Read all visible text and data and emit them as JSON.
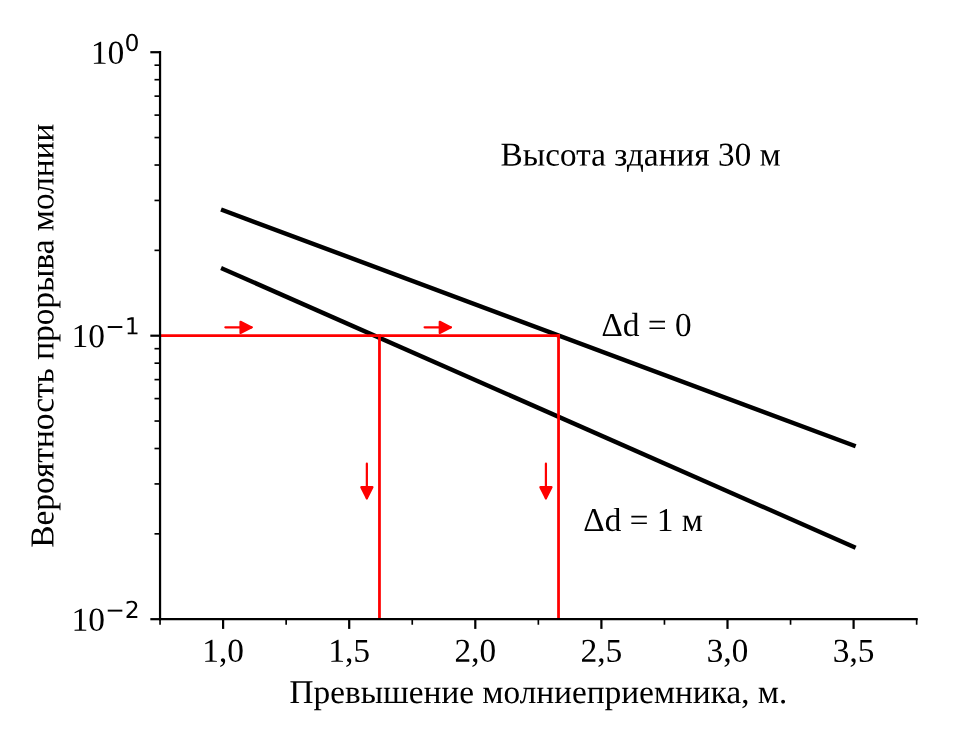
{
  "chart_data": {
    "type": "line",
    "xlabel": "Превышение молниеприемника, м.",
    "ylabel": "Вероятность прорыва молнии",
    "log": "y",
    "xlim": [
      0.75,
      3.75
    ],
    "xticks": [
      {
        "value": 1.0,
        "label": "1,0"
      },
      {
        "value": 1.5,
        "label": "1,5"
      },
      {
        "value": 2.0,
        "label": "2,0"
      },
      {
        "value": 2.5,
        "label": "2,5"
      },
      {
        "value": 3.0,
        "label": "3,0"
      },
      {
        "value": 3.5,
        "label": "3,5"
      }
    ],
    "ylim": [
      0.01,
      1
    ],
    "yticks": [
      {
        "value": 0.01,
        "label": "10$^{−2}$"
      },
      {
        "value": 0.1,
        "label": "10$^{−1}$"
      },
      {
        "value": 1,
        "label": "10$^{0}$"
      }
    ],
    "grid": false,
    "series": [
      {
        "name": "Δd = 0",
        "color": "#000000",
        "x": [
          1.0,
          3.5
        ],
        "values": [
          0.277,
          0.041
        ]
      },
      {
        "name": "Δd = 1 м",
        "color": "#000000",
        "x": [
          1.0,
          3.5
        ],
        "values": [
          0.172,
          0.018
        ]
      },
      {
        "color": "#ff0000",
        "x": [
          0.75,
          2.33
        ],
        "values": [
          0.1,
          0.1
        ]
      },
      {
        "color": "#ff0000",
        "x": [
          1.62,
          1.62
        ],
        "values": [
          0.1,
          0.01
        ]
      },
      {
        "color": "#ff0000",
        "x": [
          2.33,
          2.33
        ],
        "values": [
          0.1,
          0.01
        ]
      }
    ],
    "annotations": [
      "Высота здания 30 м"
    ]
  }
}
